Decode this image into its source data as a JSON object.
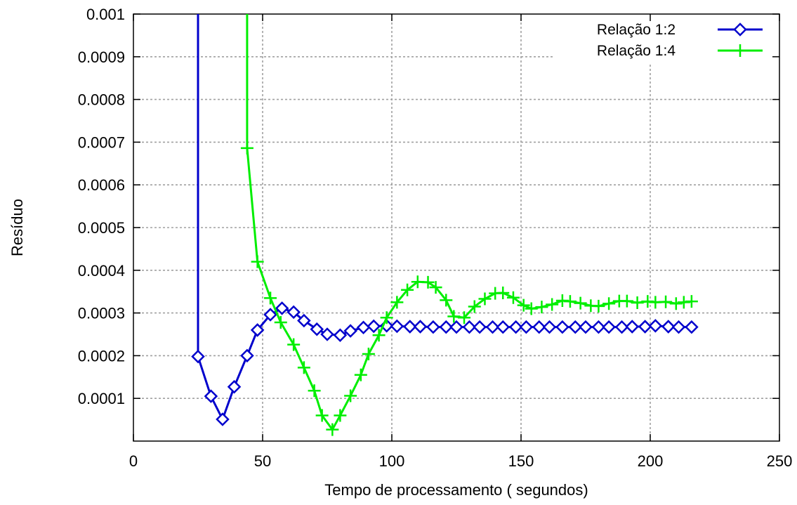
{
  "chart_data": {
    "type": "line",
    "title": "",
    "xlabel": "Tempo de processamento ( segundos)",
    "ylabel": "Resíduo",
    "xlim": [
      0,
      250
    ],
    "ylim": [
      0,
      0.001
    ],
    "x_ticks": [
      0,
      50,
      100,
      150,
      200,
      250
    ],
    "x_tick_labels": [
      "0",
      "50",
      "100",
      "150",
      "200",
      "250"
    ],
    "y_ticks": [
      0.0001,
      0.0002,
      0.0003,
      0.0004,
      0.0005,
      0.0006,
      0.0007,
      0.0008,
      0.0009,
      0.001
    ],
    "y_tick_labels": [
      "0.0001",
      "0.0002",
      "0.0003",
      "0.0004",
      "0.0005",
      "0.0006",
      "0.0007",
      "0.0008",
      "0.0009",
      "0.001"
    ],
    "grid": true,
    "legend_position": "top-right",
    "series": [
      {
        "name": "Relação 1:2",
        "color": "#0000cc",
        "marker": "diamond",
        "x": [
          25,
          30,
          34.5,
          39,
          44,
          48,
          53,
          57.5,
          62,
          66,
          71,
          75,
          80,
          84,
          89,
          93,
          98,
          102,
          107,
          111,
          116,
          121,
          125,
          130,
          134,
          139,
          143,
          148,
          152,
          157,
          161,
          166,
          171,
          175,
          180,
          184,
          189,
          193,
          198,
          202,
          207,
          211,
          216
        ],
        "y": [
          0.000198,
          0.000105,
          5.1e-05,
          0.000127,
          0.0002,
          0.00026,
          0.000296,
          0.000311,
          0.000302,
          0.000282,
          0.000262,
          0.00025,
          0.000248,
          0.000258,
          0.000266,
          0.000269,
          0.00027,
          0.000269,
          0.000268,
          0.000268,
          0.000267,
          0.000267,
          0.000267,
          0.000267,
          0.000267,
          0.000267,
          0.000267,
          0.000267,
          0.000267,
          0.000267,
          0.000267,
          0.000267,
          0.000267,
          0.000267,
          0.000267,
          0.000267,
          0.000267,
          0.000268,
          0.000268,
          0.00027,
          0.000268,
          0.000267,
          0.000267
        ],
        "offscreen_start": {
          "x": 25,
          "y": 0.001
        }
      },
      {
        "name": "Relação 1:4",
        "color": "#00ee00",
        "marker": "plus",
        "x": [
          44,
          48,
          53,
          57,
          62,
          66,
          70,
          73,
          77,
          80,
          84,
          88,
          91,
          95,
          98,
          102,
          106,
          110,
          114,
          117,
          121,
          124,
          128,
          132,
          136,
          140,
          143,
          147,
          151,
          154,
          158,
          162,
          166,
          169,
          173,
          177,
          180,
          184,
          188,
          191,
          195,
          199,
          202,
          206,
          210,
          213,
          216
        ],
        "y": [
          0.000686,
          0.00042,
          0.000335,
          0.000278,
          0.000226,
          0.000172,
          0.000118,
          6e-05,
          2.7e-05,
          6e-05,
          0.000106,
          0.000155,
          0.000204,
          0.000248,
          0.000289,
          0.000325,
          0.000354,
          0.000373,
          0.000372,
          0.00036,
          0.00033,
          0.000292,
          0.000289,
          0.000315,
          0.000333,
          0.000346,
          0.000347,
          0.000336,
          0.000318,
          0.00031,
          0.000314,
          0.00032,
          0.000329,
          0.000327,
          0.000323,
          0.000317,
          0.000316,
          0.000322,
          0.000328,
          0.000328,
          0.000324,
          0.000327,
          0.000325,
          0.000326,
          0.000322,
          0.000325,
          0.000327
        ],
        "offscreen_start": {
          "x": 44,
          "y": 0.001
        }
      }
    ]
  }
}
